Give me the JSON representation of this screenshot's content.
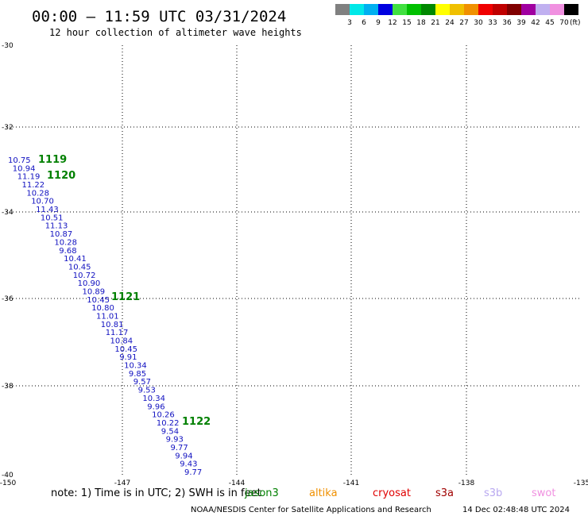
{
  "title": "00:00 – 11:59 UTC 03/31/2024",
  "subtitle": "12 hour collection of altimeter wave heights",
  "lon_ticks": [
    "-150",
    "-147",
    "-144",
    "-141",
    "-138",
    "-135"
  ],
  "lat_ticks": [
    "-30",
    "-32",
    "-34",
    "-36",
    "-38",
    "-40"
  ],
  "legend": {
    "unit": "(ft)",
    "labels": [
      "3",
      "6",
      "9",
      "12",
      "15",
      "18",
      "21",
      "24",
      "27",
      "30",
      "33",
      "36",
      "39",
      "42",
      "45",
      "70"
    ],
    "colors": [
      "#808080",
      "#00e8e8",
      "#00b0f0",
      "#0000e0",
      "#40e040",
      "#00c000",
      "#008800",
      "#ffff00",
      "#f0c000",
      "#f09000",
      "#f00000",
      "#c00000",
      "#800000",
      "#a000a0",
      "#c0b0f0",
      "#f090e0",
      "#000000"
    ]
  },
  "track": {
    "values": [
      "10.75",
      "10.94",
      "11.19",
      "11.22",
      "10.28",
      "10.70",
      "11.43",
      "10.51",
      "11.13",
      "10.87",
      "10.28",
      "9.68",
      "10.41",
      "10.45",
      "10.72",
      "10.90",
      "10.89",
      "10.45",
      "10.80",
      "11.01",
      "10.81",
      "11.17",
      "10.84",
      "10.45",
      "9.91",
      "10.34",
      "9.85",
      "9.57",
      "9.53",
      "10.34",
      "9.96",
      "10.26",
      "10.22",
      "9.54",
      "9.93",
      "9.77",
      "9.94",
      "9.43",
      "9.77"
    ],
    "passes": [
      "1119",
      "1120",
      "1121",
      "1122"
    ]
  },
  "note": "note:  1) Time is in UTC;  2) SWH is in feet",
  "satellites": [
    {
      "name": "jason3",
      "color": "#008000"
    },
    {
      "name": "altika",
      "color": "#f09000"
    },
    {
      "name": "cryosat",
      "color": "#e00000"
    },
    {
      "name": "s3a",
      "color": "#a00000"
    },
    {
      "name": "s3b",
      "color": "#b8a8f0"
    },
    {
      "name": "swot",
      "color": "#f090e0"
    }
  ],
  "footer": {
    "credit": "NOAA/NESDIS Center for Satellite Applications and Research",
    "timestamp": "14 Dec 02:48:48 UTC 2024"
  }
}
